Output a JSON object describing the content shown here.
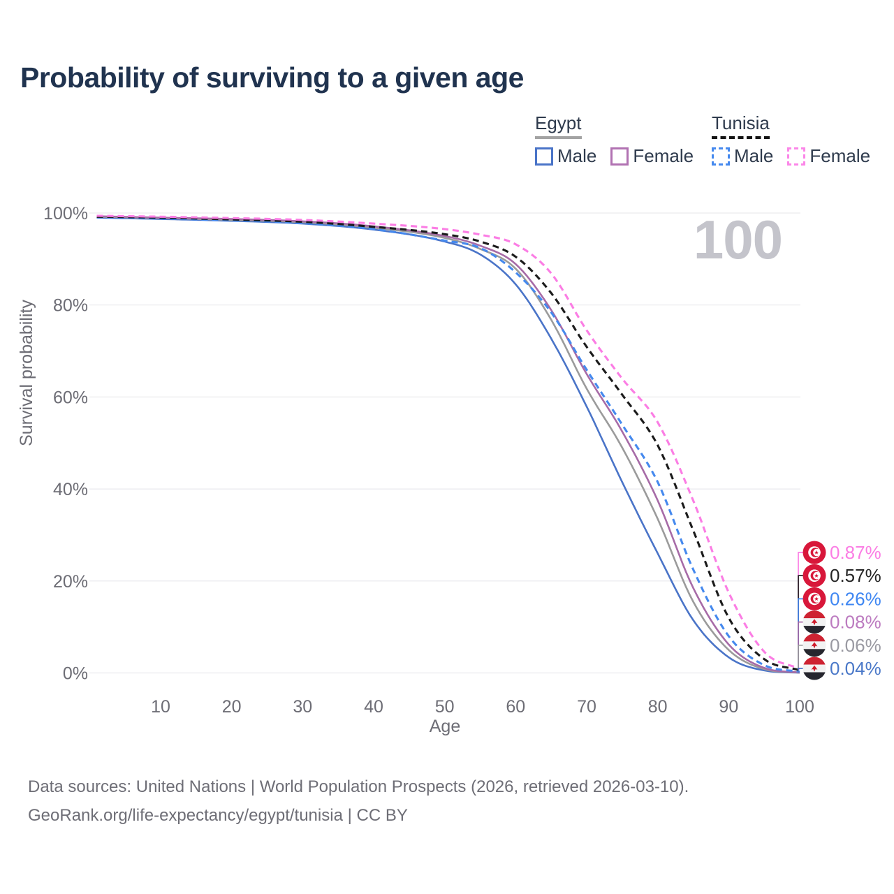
{
  "title": "Probability of surviving to a given age",
  "watermark": "100",
  "legend": {
    "groups": [
      {
        "country": "Egypt",
        "underline_style": "solid",
        "underline_color": "#a3a3a3",
        "items": [
          {
            "label": "Male",
            "color": "#4a74c8",
            "line_style": "solid"
          },
          {
            "label": "Female",
            "color": "#b172b2",
            "line_style": "solid"
          }
        ]
      },
      {
        "country": "Tunisia",
        "underline_style": "dashed",
        "underline_color": "#141414",
        "items": [
          {
            "label": "Male",
            "color": "#4589ee",
            "line_style": "dashed"
          },
          {
            "label": "Female",
            "color": "#fb86e8",
            "line_style": "dashed"
          }
        ]
      }
    ]
  },
  "axes": {
    "y_label": "Survival probability",
    "x_label": "Age",
    "y_ticks": [
      "0%",
      "20%",
      "40%",
      "60%",
      "80%",
      "100%"
    ],
    "x_ticks": [
      "10",
      "20",
      "30",
      "40",
      "50",
      "60",
      "70",
      "80",
      "90",
      "100"
    ]
  },
  "chart_data": {
    "type": "line",
    "title": "Probability of surviving to a given age",
    "xlabel": "Age",
    "ylabel": "Survival probability",
    "x_range": [
      0,
      100
    ],
    "y_range": [
      "0%",
      "100%"
    ],
    "grid": "horizontal",
    "legend_position": "top-right",
    "ages": [
      1,
      10,
      20,
      30,
      40,
      50,
      55,
      60,
      65,
      70,
      75,
      80,
      85,
      90,
      95,
      100
    ],
    "series": [
      {
        "id": "egypt-male",
        "name": "Egypt Male",
        "country": "Egypt",
        "sex": "Male",
        "line_style": "solid",
        "color": "#4a74c8",
        "end_label": "0.04%",
        "values": [
          99.0,
          98.7,
          98.3,
          97.7,
          96.4,
          93.8,
          91.0,
          84.5,
          72.7,
          57.9,
          41.5,
          26.0,
          11.5,
          3.4,
          0.55,
          0.04
        ]
      },
      {
        "id": "egypt-all",
        "name": "Egypt (both sexes)",
        "country": "Egypt",
        "sex": "All",
        "line_style": "solid",
        "color": "#9b9b9b",
        "end_label": "0.06%",
        "values": [
          99.2,
          98.9,
          98.5,
          98.0,
          96.8,
          94.6,
          92.2,
          87.9,
          76.8,
          61.8,
          49.0,
          33.5,
          15.5,
          5.0,
          0.85,
          0.06
        ]
      },
      {
        "id": "egypt-female",
        "name": "Egypt Female",
        "country": "Egypt",
        "sex": "Female",
        "line_style": "solid",
        "color": "#a76ba7",
        "end_label": "0.08%",
        "values": [
          99.3,
          99.0,
          98.7,
          98.2,
          97.1,
          95.0,
          92.9,
          88.9,
          78.9,
          65.0,
          52.5,
          37.5,
          18.5,
          6.2,
          1.1,
          0.08
        ]
      },
      {
        "id": "tunisia-male",
        "name": "Tunisia Male",
        "country": "Tunisia",
        "sex": "Male",
        "line_style": "dashed",
        "color": "#4589ee",
        "end_label": "0.26%",
        "values": [
          99.1,
          98.8,
          98.4,
          97.8,
          96.5,
          94.0,
          92.4,
          87.1,
          78.4,
          65.9,
          54.0,
          41.5,
          22.5,
          8.0,
          1.7,
          0.26
        ]
      },
      {
        "id": "tunisia-all",
        "name": "Tunisia (both sexes)",
        "country": "Tunisia",
        "sex": "All",
        "line_style": "dashed",
        "color": "#1b1b1b",
        "end_label": "0.57%",
        "values": [
          99.2,
          99.0,
          98.6,
          98.1,
          97.0,
          95.4,
          93.8,
          90.5,
          82.6,
          70.9,
          60.5,
          49.5,
          31.0,
          12.0,
          3.0,
          0.57
        ]
      },
      {
        "id": "tunisia-female",
        "name": "Tunisia Female",
        "country": "Tunisia",
        "sex": "Female",
        "line_style": "dashed",
        "color": "#fb7de4",
        "end_label": "0.87%",
        "values": [
          99.4,
          99.2,
          98.9,
          98.5,
          97.7,
          96.5,
          95.3,
          93.2,
          86.9,
          74.5,
          64.0,
          54.5,
          37.5,
          17.5,
          4.6,
          0.87
        ]
      }
    ]
  },
  "end_labels": [
    {
      "value": "0.87%",
      "flag": "tunisia",
      "color": "#fb7de4",
      "line_color": "#fb7de4",
      "series": "tunisia-female"
    },
    {
      "value": "0.57%",
      "flag": "tunisia",
      "color": "#252525",
      "line_color": "#1b1b1b",
      "series": "tunisia-all"
    },
    {
      "value": "0.26%",
      "flag": "tunisia",
      "color": "#3e86f2",
      "line_color": "#4589ee",
      "series": "tunisia-male"
    },
    {
      "value": "0.08%",
      "flag": "egypt",
      "color": "#bc7bc0",
      "line_color": "#a76ba7",
      "series": "egypt-female"
    },
    {
      "value": "0.06%",
      "flag": "egypt",
      "color": "#9a9aa2",
      "line_color": "#9b9b9b",
      "series": "egypt-all"
    },
    {
      "value": "0.04%",
      "flag": "egypt",
      "color": "#4a78c8",
      "line_color": "#4a74c8",
      "series": "egypt-male"
    }
  ],
  "footer": {
    "line1": "Data sources: United Nations | World Population Prospects (2026, retrieved 2026-03-10).",
    "line2": "GeoRank.org/life-expectancy/egypt/tunisia | CC BY"
  }
}
